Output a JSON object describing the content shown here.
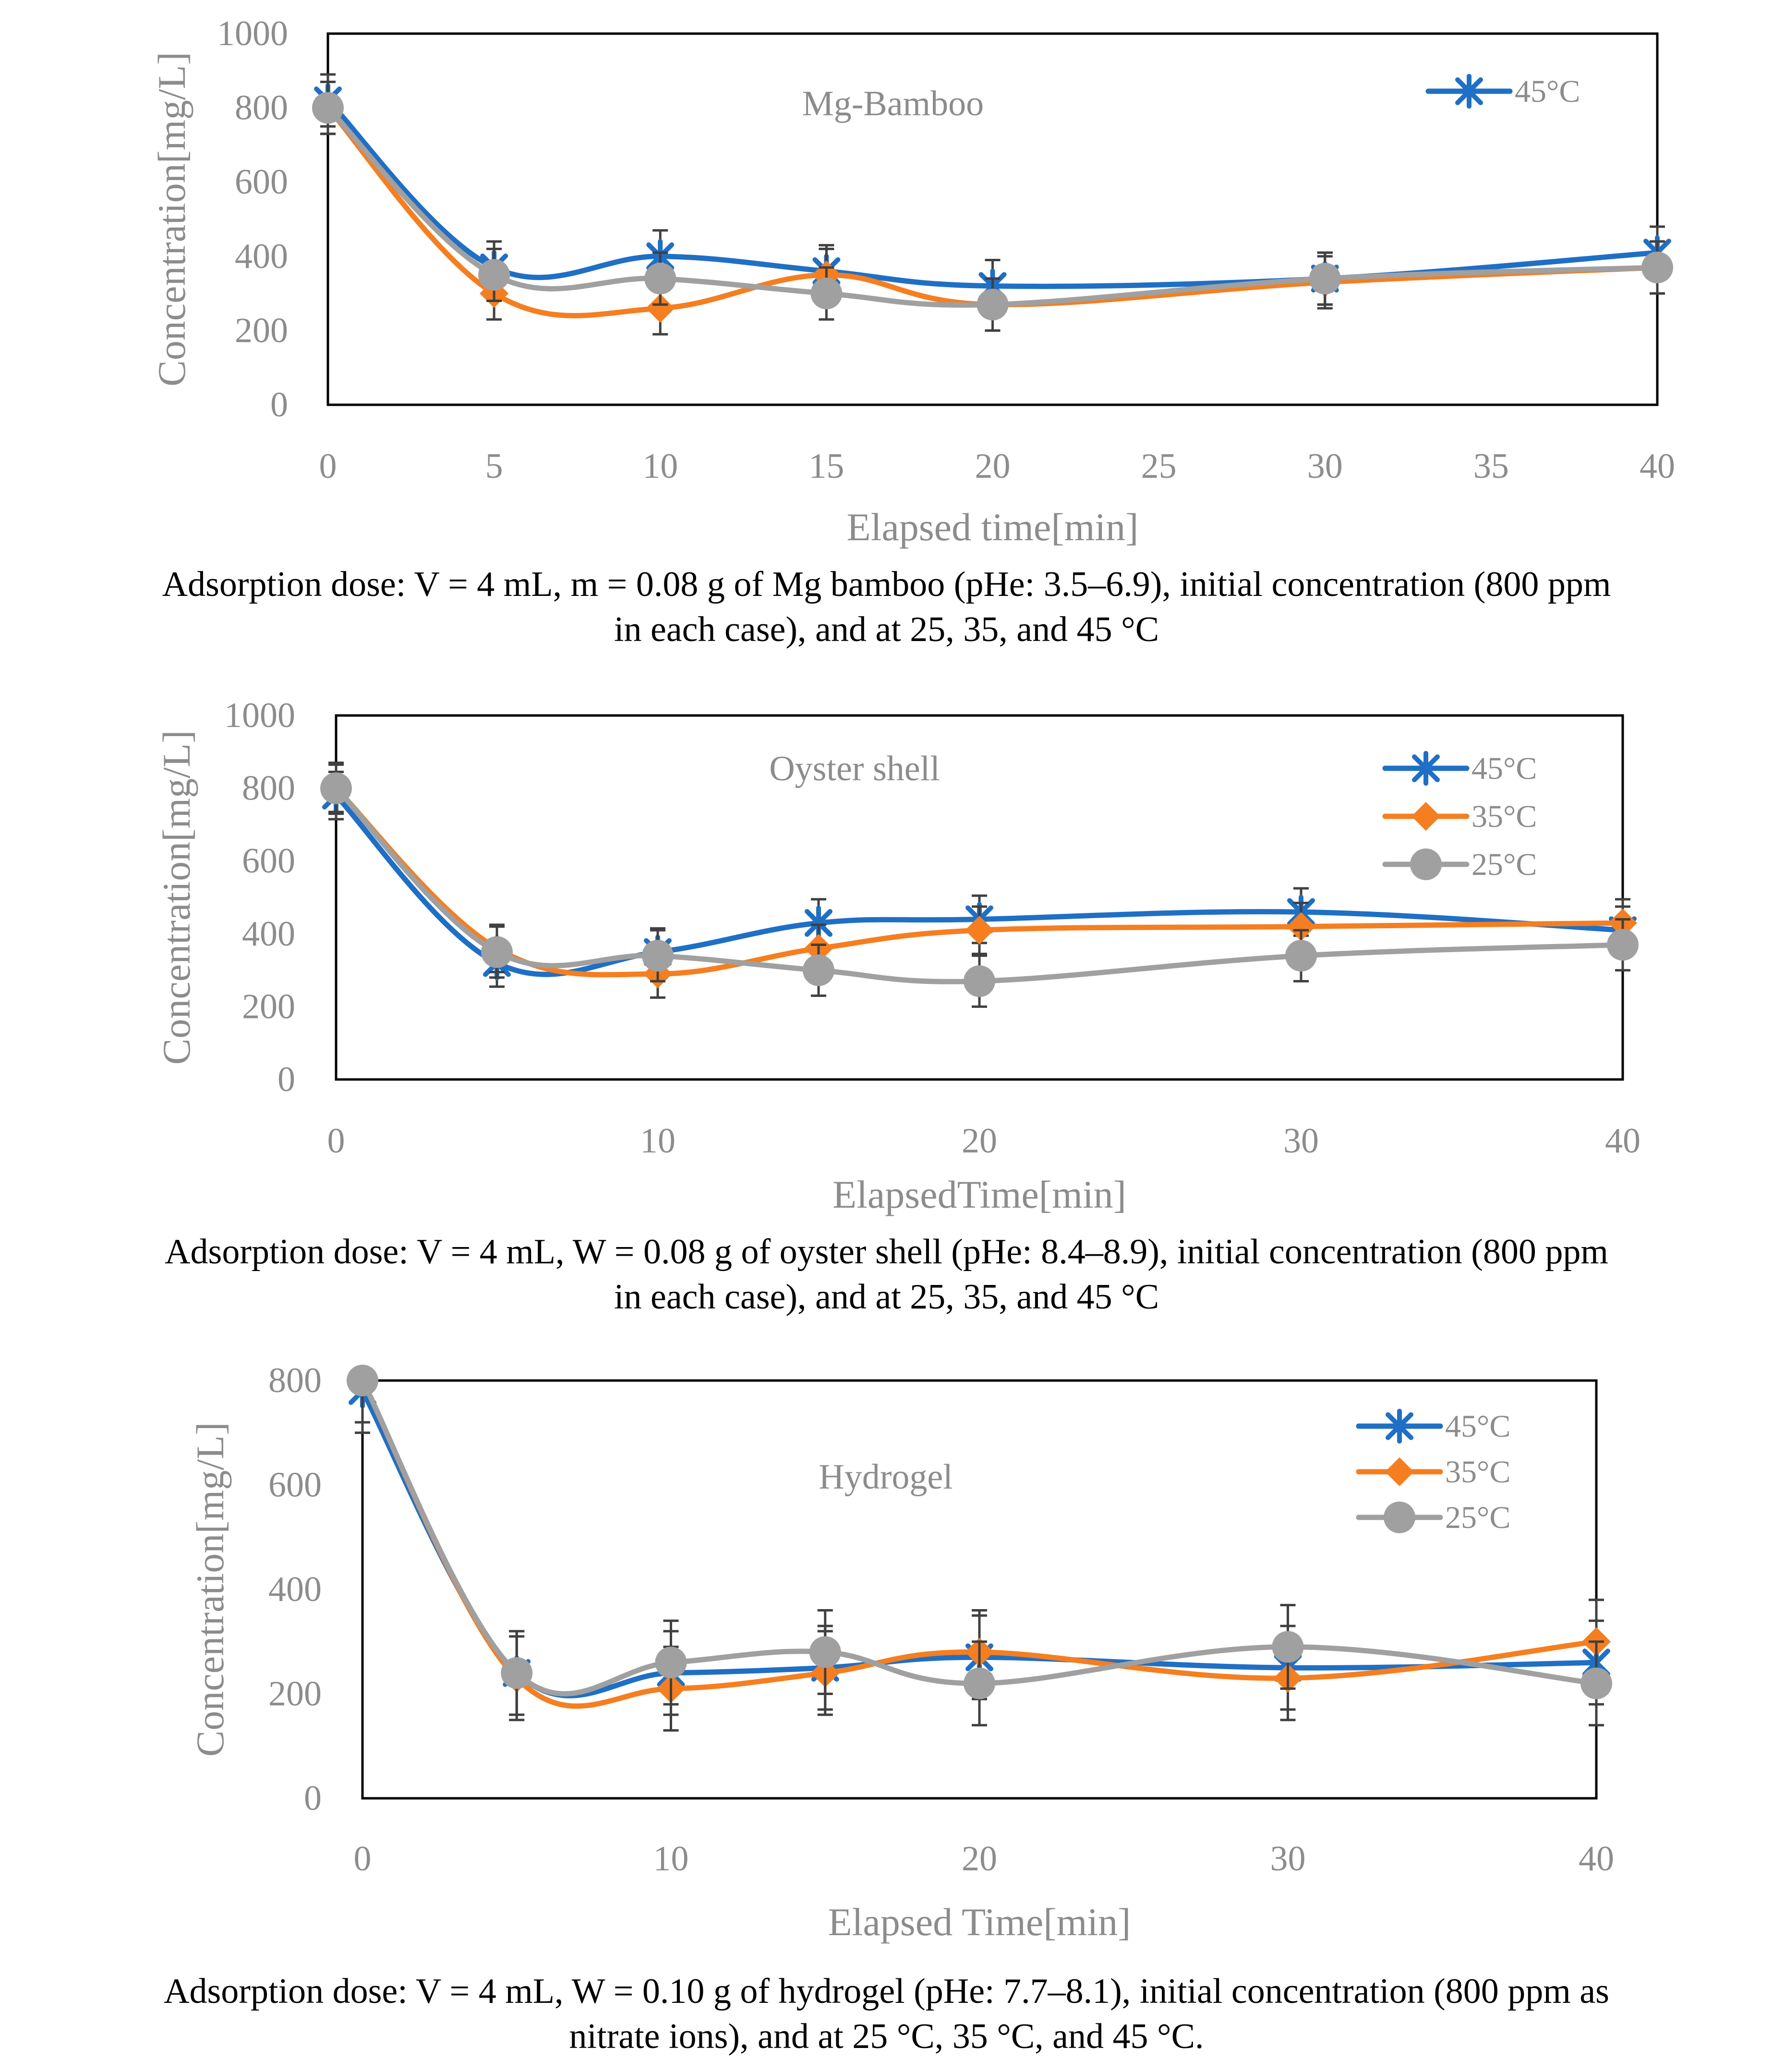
{
  "colors": {
    "s45": "#1f6fc5",
    "s35": "#f57e20",
    "s25": "#a0a0a0",
    "axis": "#8c8c8c",
    "frame": "#000000",
    "error": "#404040"
  },
  "captions": [
    {
      "line1": "Adsorption dose: V = 4 mL, m = 0.08 g of Mg bamboo (pHe: 3.5–6.9), initial concentration (800 ppm",
      "line2": "in each case), and at 25, 35, and 45 °C"
    },
    {
      "line1": "Adsorption dose: V = 4 mL, W = 0.08 g of oyster shell (pHe: 8.4–8.9), initial concentration (800 ppm",
      "line2": "in each case), and at 25, 35, and 45 °C"
    },
    {
      "line1": "Adsorption dose: V = 4 mL, W = 0.10 g of hydrogel (pHe: 7.7–8.1), initial concentration (800 ppm as",
      "line2": "nitrate ions), and at 25 °C, 35 °C, and 45 °C."
    }
  ],
  "chart_data": [
    {
      "type": "line",
      "title": "Mg-Bamboo",
      "xlabel": "Elapsed time[min]",
      "ylabel": "Concentration[mg/L]",
      "x": [
        0,
        5,
        10,
        15,
        20,
        30,
        40
      ],
      "xlim": [
        0,
        40
      ],
      "xticks": [
        0,
        5,
        10,
        15,
        20,
        25,
        30,
        35,
        40
      ],
      "ylim": [
        0,
        1000
      ],
      "yticks": [
        0,
        200,
        400,
        600,
        800,
        1000
      ],
      "legend_position": "top-right",
      "series": [
        {
          "name": "45°C",
          "color_key": "s45",
          "marker": "star",
          "in_legend": true,
          "values": [
            820,
            370,
            400,
            360,
            320,
            340,
            410
          ],
          "error": 70
        },
        {
          "name": "35°C",
          "color_key": "s35",
          "marker": "diamond",
          "in_legend": false,
          "values": [
            800,
            300,
            260,
            350,
            270,
            330,
            370
          ],
          "error": 70
        },
        {
          "name": "25°C",
          "color_key": "s25",
          "marker": "circle",
          "in_legend": false,
          "values": [
            800,
            350,
            340,
            300,
            270,
            340,
            370
          ],
          "error": 70
        }
      ]
    },
    {
      "type": "line",
      "title": "Oyster shell",
      "xlabel": "ElapsedTime[min]",
      "ylabel": "Concentration[mg/L]",
      "x": [
        0,
        5,
        10,
        15,
        20,
        30,
        40
      ],
      "xlim": [
        0,
        40
      ],
      "xticks": [
        0,
        10,
        20,
        30,
        40
      ],
      "ylim": [
        0,
        1000
      ],
      "yticks": [
        0,
        200,
        400,
        600,
        800,
        1000
      ],
      "legend_position": "top-right",
      "series": [
        {
          "name": "45°C",
          "color_key": "s45",
          "marker": "star",
          "in_legend": true,
          "values": [
            780,
            320,
            350,
            430,
            440,
            460,
            410
          ],
          "error": 65
        },
        {
          "name": "35°C",
          "color_key": "s35",
          "marker": "diamond",
          "in_legend": true,
          "values": [
            800,
            360,
            290,
            360,
            410,
            420,
            430
          ],
          "error": 65
        },
        {
          "name": "25°C",
          "color_key": "s25",
          "marker": "circle",
          "in_legend": true,
          "values": [
            800,
            350,
            340,
            300,
            270,
            340,
            370
          ],
          "error": 70
        }
      ]
    },
    {
      "type": "line",
      "title": "Hydrogel",
      "xlabel": "Elapsed Time[min]",
      "ylabel": "Concentration[mg/L]",
      "x": [
        0,
        5,
        10,
        15,
        20,
        30,
        40
      ],
      "xlim": [
        0,
        40
      ],
      "xticks": [
        0,
        10,
        20,
        30,
        40
      ],
      "ylim": [
        0,
        800
      ],
      "yticks": [
        0,
        200,
        400,
        600,
        800
      ],
      "legend_position": "top-right",
      "series": [
        {
          "name": "45°C",
          "color_key": "s45",
          "marker": "star",
          "in_legend": true,
          "values": [
            780,
            240,
            240,
            250,
            270,
            250,
            260
          ],
          "error": 80
        },
        {
          "name": "35°C",
          "color_key": "s35",
          "marker": "diamond",
          "in_legend": true,
          "values": [
            800,
            230,
            210,
            240,
            280,
            230,
            300
          ],
          "error": 80
        },
        {
          "name": "25°C",
          "color_key": "s25",
          "marker": "circle",
          "in_legend": true,
          "values": [
            800,
            240,
            260,
            280,
            220,
            290,
            220
          ],
          "error": 80
        }
      ]
    }
  ]
}
